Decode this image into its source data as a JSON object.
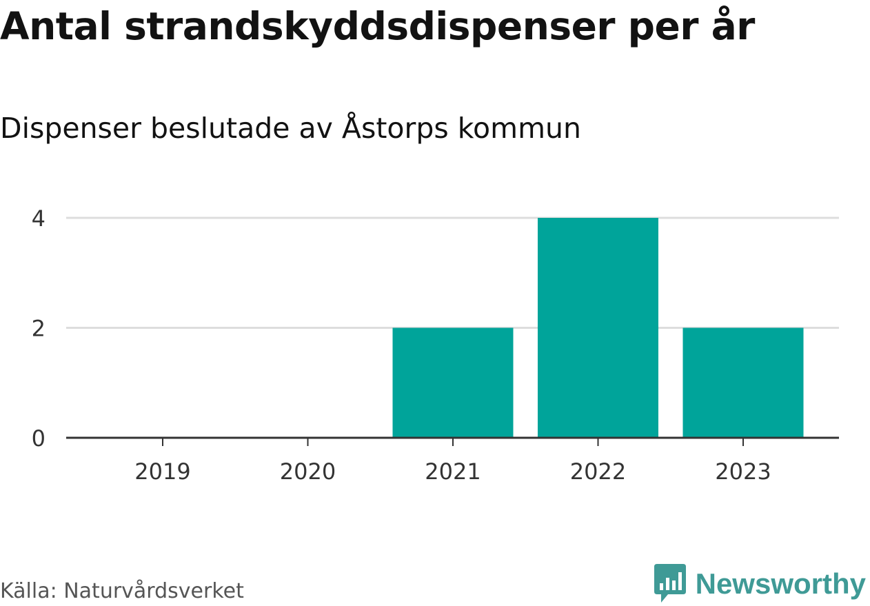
{
  "header": {
    "title": "Antal strandskyddsdispenser per år",
    "subtitle": "Dispenser beslutade av Åstorps kommun"
  },
  "footer": {
    "source": "Källa: Naturvårdsverket",
    "brand": "Newsworthy",
    "brand_icon": "bar-chart-speech-bubble-icon"
  },
  "colors": {
    "bar": "#00a49a",
    "grid": "#dddddd",
    "axis": "#333333",
    "tick_text": "#333333",
    "brand": "#3f9a96"
  },
  "chart_data": {
    "type": "bar",
    "title": "Antal strandskyddsdispenser per år",
    "subtitle": "Dispenser beslutade av Åstorps kommun",
    "categories": [
      "2019",
      "2020",
      "2021",
      "2022",
      "2023"
    ],
    "values": [
      0,
      0,
      2,
      4,
      2
    ],
    "ylim": [
      0,
      4
    ],
    "yticks": [
      0,
      2,
      4
    ],
    "xlabel": "",
    "ylabel": "",
    "grid": true,
    "legend": "none"
  }
}
